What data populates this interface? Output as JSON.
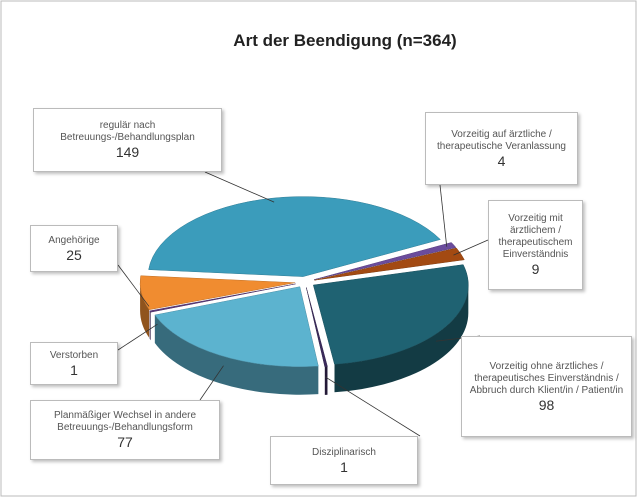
{
  "chart_data": {
    "type": "pie",
    "title": "Art der Beendigung (n=364)",
    "categories": [
      "regulär nach Betreuungs-/Behandlungsplan",
      "Vorzeitig auf ärztliche / therapeutische Veranlassung",
      "Vorzeitig mit ärztlichem / therapeutischem Einverständnis",
      "Vorzeitig ohne ärztliches / therapeutisches Einverständnis / Abbruch durch Klient/in / Patient/in",
      "Disziplinarisch",
      "Planmäßiger Wechsel in andere Betreuungs-/Behandlungsform",
      "Verstorben",
      "Angehörige"
    ],
    "values": [
      149,
      4,
      9,
      98,
      1,
      77,
      1,
      25
    ],
    "colors": [
      "#3b9cbb",
      "#6b4c9c",
      "#a34a12",
      "#1f6272",
      "#3b2a5c",
      "#5cb3cf",
      "#5d3b7e",
      "#f08c30"
    ]
  }
}
